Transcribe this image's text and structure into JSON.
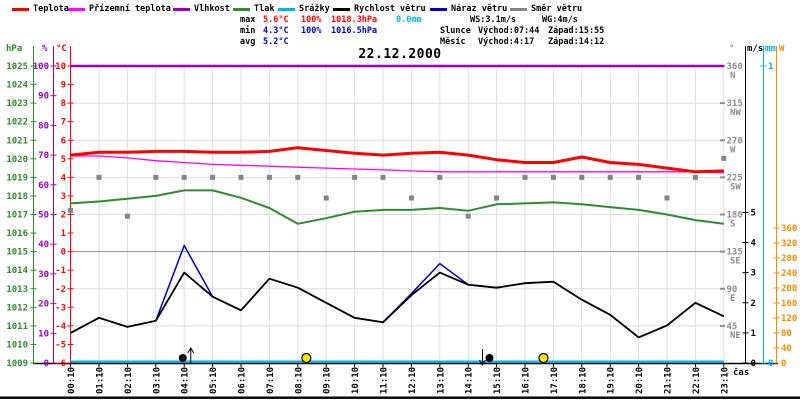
{
  "header": {
    "legend": [
      {
        "label": "Teplota",
        "color": "#ff0000"
      },
      {
        "label": "Přízemní teplota",
        "color": "#ff00ff"
      },
      {
        "label": "Vlhkost",
        "color": "#9900cc"
      },
      {
        "label": "Tlak",
        "color": "#2e8b2e"
      },
      {
        "label": "Srážky",
        "color": "#00b4f0"
      },
      {
        "label": "Rychlost větru",
        "color": "#000000"
      },
      {
        "label": "Náraz větru",
        "color": "#0000cc"
      },
      {
        "label": "Směr větru",
        "color": "#848484"
      }
    ],
    "stats": {
      "max_label": "max",
      "max_temp": "5.6°C",
      "max_hum": "100%",
      "max_pres": "1018.3hPa",
      "max_rain": "0.0mm",
      "min_label": "min",
      "min_temp": "4.3°C",
      "min_hum": "100%",
      "min_pres": "1016.5hPa",
      "avg_label": "avg",
      "avg_temp": "5.2°C"
    },
    "wind_summary": {
      "ws": "WS:3.1m/s",
      "wg": "WG:4m/s"
    },
    "sun_info": {
      "label": "Slunce",
      "rise": "Východ:07:44",
      "set": "Západ:15:55"
    },
    "moon_info": {
      "label": "Měsíc",
      "rise": "Východ:4:17",
      "set": "Západ:14:12"
    },
    "title": "22.12.2000"
  },
  "axis_units": {
    "pressure": "hPa",
    "humidity": "%",
    "temperature": "°C",
    "direction": "°",
    "wind": "m/s",
    "rain": "mm",
    "radiation": "W"
  },
  "xlabel": "čas",
  "chart_data": {
    "type": "line",
    "title": "22.12.2000",
    "x_labels": [
      "00:10",
      "01:10",
      "02:10",
      "03:10",
      "04:10",
      "05:10",
      "06:10",
      "07:10",
      "08:10",
      "09:10",
      "10:10",
      "11:10",
      "12:10",
      "13:10",
      "14:10",
      "15:10",
      "16:10",
      "17:10",
      "18:10",
      "19:10",
      "20:10",
      "21:10",
      "22:10",
      "23:10"
    ],
    "xlabel": "čas",
    "grid": true,
    "axes": {
      "temperature": {
        "unit": "°C",
        "min": -6,
        "max": 10,
        "step": 1,
        "color": "#ff0000"
      },
      "humidity": {
        "unit": "%",
        "min": 0,
        "max": 100,
        "step": 10,
        "color": "#9900cc"
      },
      "pressure": {
        "unit": "hPa",
        "min": 1009,
        "max": 1025,
        "step": 1,
        "color": "#2e8b2e"
      },
      "wind": {
        "unit": "m/s",
        "min": 0,
        "labeled_max": 5,
        "step": 1,
        "color": "#000000"
      },
      "rain": {
        "unit": "mm",
        "ticks": [
          0,
          1
        ],
        "color": "#00b4f0"
      },
      "radiation": {
        "unit": "W",
        "min": 0,
        "max": 360,
        "step": 40,
        "color": "#ff8800"
      },
      "direction": {
        "unit": "°",
        "color": "#8c8c8c",
        "ticks": [
          {
            "deg": 360,
            "dir": "N"
          },
          {
            "deg": 315,
            "dir": "NW"
          },
          {
            "deg": 270,
            "dir": "W"
          },
          {
            "deg": 225,
            "dir": "SW"
          },
          {
            "deg": 180,
            "dir": "S"
          },
          {
            "deg": 135,
            "dir": "SE"
          },
          {
            "deg": 90,
            "dir": "E"
          },
          {
            "deg": 45,
            "dir": "NE"
          }
        ]
      }
    },
    "series": [
      {
        "name": "Vlhkost",
        "unit": "%",
        "color": "#9900cc",
        "width": 2.5,
        "style": "line",
        "values": [
          100,
          100,
          100,
          100,
          100,
          100,
          100,
          100,
          100,
          100,
          100,
          100,
          100,
          100,
          100,
          100,
          100,
          100,
          100,
          100,
          100,
          100,
          100,
          100
        ]
      },
      {
        "name": "Srážky",
        "unit": "mm",
        "color": "#00b4f0",
        "width": 2,
        "style": "line",
        "values": [
          0,
          0,
          0,
          0,
          0,
          0,
          0,
          0,
          0,
          0,
          0,
          0,
          0,
          0,
          0,
          0,
          0,
          0,
          0,
          0,
          0,
          0,
          0,
          0
        ]
      },
      {
        "name": "Směr větru",
        "unit": "°",
        "color": "#848484",
        "width": 5,
        "style": "dots",
        "values": [
          185,
          225,
          178,
          225,
          225,
          225,
          225,
          225,
          225,
          200,
          225,
          225,
          200,
          225,
          178,
          200,
          225,
          225,
          225,
          225,
          225,
          200,
          225,
          248
        ]
      },
      {
        "name": "Tlak",
        "unit": "hPa",
        "color": "#2e8b2e",
        "width": 2,
        "style": "line",
        "values": [
          1017.6,
          1017.7,
          1017.85,
          1018.0,
          1018.3,
          1018.3,
          1017.9,
          1017.35,
          1016.5,
          1016.8,
          1017.15,
          1017.25,
          1017.25,
          1017.35,
          1017.2,
          1017.55,
          1017.6,
          1017.65,
          1017.55,
          1017.4,
          1017.25,
          1017.0,
          1016.7,
          1016.5
        ]
      },
      {
        "name": "Přízemní teplota",
        "unit": "°C",
        "color": "#ff00ff",
        "width": 1.3,
        "style": "line",
        "values": [
          5.15,
          5.15,
          5.05,
          4.9,
          4.8,
          4.7,
          4.65,
          4.6,
          4.55,
          4.5,
          4.45,
          4.4,
          4.35,
          4.3,
          4.3,
          4.3,
          4.3,
          4.3,
          4.3,
          4.3,
          4.3,
          4.3,
          4.3,
          4.25
        ]
      },
      {
        "name": "Teplota",
        "unit": "°C",
        "color": "#ff0000",
        "width": 3,
        "style": "line",
        "values": [
          5.2,
          5.35,
          5.35,
          5.4,
          5.4,
          5.35,
          5.35,
          5.4,
          5.6,
          5.45,
          5.3,
          5.2,
          5.3,
          5.35,
          5.2,
          4.95,
          4.8,
          4.8,
          5.1,
          4.8,
          4.7,
          4.5,
          4.3,
          4.35
        ]
      },
      {
        "name": "Náraz větru",
        "unit": "m/s",
        "color": "#0000cc",
        "width": 1.5,
        "style": "line",
        "values": [
          1.0,
          1.5,
          1.2,
          1.4,
          3.9,
          2.2,
          1.75,
          2.8,
          2.5,
          2.0,
          1.5,
          1.35,
          2.3,
          3.3,
          2.6,
          2.5,
          2.65,
          2.7,
          2.1,
          1.6,
          0.85,
          1.25,
          2.0,
          1.55
        ]
      },
      {
        "name": "Rychlost větru",
        "unit": "m/s",
        "color": "#000000",
        "width": 1.8,
        "style": "line",
        "values": [
          1.0,
          1.5,
          1.2,
          1.4,
          3.0,
          2.2,
          1.75,
          2.8,
          2.5,
          2.0,
          1.5,
          1.35,
          2.25,
          3.0,
          2.6,
          2.5,
          2.65,
          2.7,
          2.1,
          1.6,
          0.85,
          1.25,
          2.0,
          1.55
        ]
      }
    ],
    "symbols": [
      {
        "name": "moonrise-marker",
        "hour": 3.95,
        "time": "4:17"
      },
      {
        "name": "sunrise-marker",
        "hour": 8.3,
        "time": "07:44"
      },
      {
        "name": "moonset-marker",
        "hour": 14.75,
        "time": "14:12"
      },
      {
        "name": "sunset-marker",
        "hour": 16.65,
        "time": "15:55"
      }
    ]
  }
}
